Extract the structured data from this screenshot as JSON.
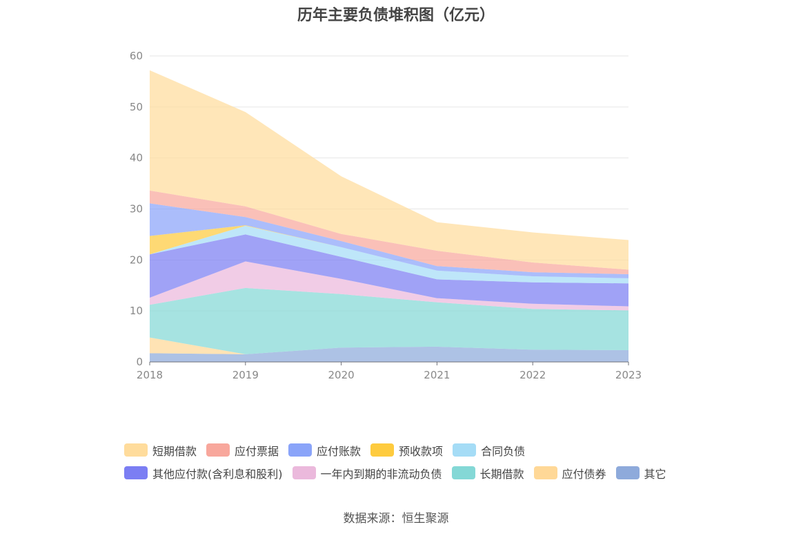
{
  "chart_data": {
    "type": "area",
    "title": "历年主要负债堆积图（亿元）",
    "x": [
      "2018",
      "2019",
      "2020",
      "2021",
      "2022",
      "2023"
    ],
    "yticks": [
      "0",
      "10",
      "20",
      "30",
      "40",
      "50",
      "60"
    ],
    "ylim": [
      0,
      60
    ],
    "stacked": true,
    "grid": true,
    "legend_position": "bottom",
    "series": [
      {
        "name": "其它",
        "color": "#8eaadb",
        "values": [
          1.7,
          1.5,
          2.8,
          3.0,
          2.4,
          2.3
        ]
      },
      {
        "name": "应付债券",
        "color": "#ffd897",
        "values": [
          3.1,
          0,
          0,
          0,
          0,
          0
        ]
      },
      {
        "name": "长期借款",
        "color": "#84d8d6",
        "values": [
          6.4,
          13.0,
          10.5,
          8.7,
          8.0,
          7.8
        ]
      },
      {
        "name": "一年内到期的非流动负债",
        "color": "#ebb9dc",
        "values": [
          1.4,
          5.2,
          3.0,
          0.8,
          1.0,
          0.8
        ]
      },
      {
        "name": "其他应付款(含利息和股利)",
        "color": "#7b7ef3",
        "values": [
          8.5,
          5.3,
          4.3,
          3.7,
          4.2,
          4.5
        ]
      },
      {
        "name": "合同负债",
        "color": "#a5dcf6",
        "values": [
          0,
          1.7,
          1.9,
          1.7,
          1.2,
          1.0
        ]
      },
      {
        "name": "预收款项",
        "color": "#fecb3e",
        "values": [
          3.6,
          0.1,
          0,
          0,
          0,
          0
        ]
      },
      {
        "name": "应付账款",
        "color": "#8aa4f9",
        "values": [
          6.4,
          1.6,
          1.2,
          0.9,
          0.8,
          0.8
        ]
      },
      {
        "name": "应付票据",
        "color": "#f8a79c",
        "values": [
          2.5,
          2.1,
          1.4,
          3.0,
          1.9,
          0.9
        ]
      },
      {
        "name": "短期借款",
        "color": "#ffdc9c",
        "values": [
          23.6,
          18.5,
          11.3,
          5.6,
          5.9,
          5.8
        ]
      }
    ]
  },
  "legend": {
    "row1": [
      {
        "label": "短期借款",
        "color": "#ffdc9c"
      },
      {
        "label": "应付票据",
        "color": "#f8a79c"
      },
      {
        "label": "应付账款",
        "color": "#8aa4f9"
      },
      {
        "label": "预收款项",
        "color": "#fecb3e"
      },
      {
        "label": "合同负债",
        "color": "#a5dcf6"
      }
    ],
    "row2": [
      {
        "label": "其他应付款(含利息和股利)",
        "color": "#7b7ef3"
      },
      {
        "label": "一年内到期的非流动负债",
        "color": "#ebb9dc"
      },
      {
        "label": "长期借款",
        "color": "#84d8d6"
      },
      {
        "label": "应付债券",
        "color": "#ffd897"
      },
      {
        "label": "其它",
        "color": "#8eaadb"
      }
    ]
  },
  "source": "数据来源：恒生聚源"
}
